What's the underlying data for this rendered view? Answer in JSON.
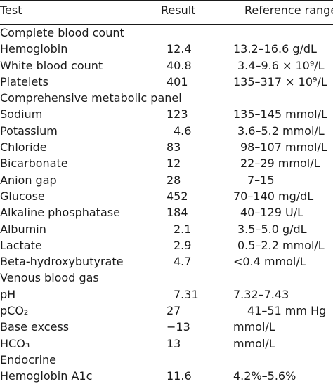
{
  "header": {
    "test": "Test",
    "result": "Result",
    "reference": "Reference range"
  },
  "rows": [
    {
      "type": "section",
      "test": "Complete blood count"
    },
    {
      "type": "data",
      "test": "Hemoglobin",
      "result": "12.4",
      "ref": "13.2–16.6 g/dL",
      "rpad": 0,
      "fpad": 0
    },
    {
      "type": "data",
      "test": "White blood count",
      "result": "40.8",
      "ref": "3.4–9.6 × 10⁹/L",
      "rpad": 0,
      "fpad": 6
    },
    {
      "type": "data",
      "test": "Platelets",
      "result": "401",
      "ref": "135–317 × 10⁹/L",
      "rpad": 0,
      "fpad": 0
    },
    {
      "type": "section",
      "test": "Comprehensive metabolic panel"
    },
    {
      "type": "data",
      "test": "Sodium",
      "result": "123",
      "ref": "135–145 mmol/L",
      "rpad": 0,
      "fpad": 0
    },
    {
      "type": "data",
      "test": "Potassium",
      "result": "4.6",
      "ref": "3.6–5.2 mmol/L",
      "rpad": 10,
      "fpad": 6
    },
    {
      "type": "data",
      "test": "Chloride",
      "result": "83",
      "ref": "98–107 mmol/L",
      "rpad": 0,
      "fpad": 10
    },
    {
      "type": "data",
      "test": "Bicarbonate",
      "result": "12",
      "ref": "22–29 mmol/L",
      "rpad": 0,
      "fpad": 10
    },
    {
      "type": "data",
      "test": "Anion gap",
      "result": "28",
      "ref": "7–15",
      "rpad": 0,
      "fpad": 20
    },
    {
      "type": "data",
      "test": "Glucose",
      "result": "452",
      "ref": "70–140 mg/dL",
      "rpad": 0,
      "fpad": 0
    },
    {
      "type": "data",
      "test": "Alkaline phosphatase",
      "result": "184",
      "ref": "40–129 U/L",
      "rpad": 0,
      "fpad": 10
    },
    {
      "type": "data",
      "test": "Albumin",
      "result": "2.1",
      "ref": "3.5–5.0 g/dL",
      "rpad": 10,
      "fpad": 6
    },
    {
      "type": "data",
      "test": "Lactate",
      "result": "2.9",
      "ref": "0.5–2.2 mmol/L",
      "rpad": 10,
      "fpad": 6
    },
    {
      "type": "data",
      "test": "Beta-hydroxybutyrate",
      "result": "4.7",
      "ref": "<0.4 mmol/L",
      "rpad": 10,
      "fpad": 0
    },
    {
      "type": "section",
      "test": "Venous blood gas"
    },
    {
      "type": "data",
      "test": "pH",
      "result": "7.31",
      "ref": "7.32–7.43",
      "rpad": 10,
      "fpad": 0
    },
    {
      "type": "data",
      "test": "pCO₂",
      "result": "27",
      "ref": "41–51 mm Hg",
      "rpad": 0,
      "fpad": 20
    },
    {
      "type": "data",
      "test": "Base excess",
      "result": "−13",
      "ref": "mmol/L",
      "rpad": 0,
      "fpad": 0
    },
    {
      "type": "data",
      "test": "HCO₃",
      "result": "13",
      "ref": "mmol/L",
      "rpad": 0,
      "fpad": 0
    },
    {
      "type": "section",
      "test": "Endocrine"
    },
    {
      "type": "data",
      "test": "Hemoglobin A1c",
      "result": "11.6",
      "ref": "4.2%–5.6%",
      "rpad": 0,
      "fpad": 0
    }
  ]
}
